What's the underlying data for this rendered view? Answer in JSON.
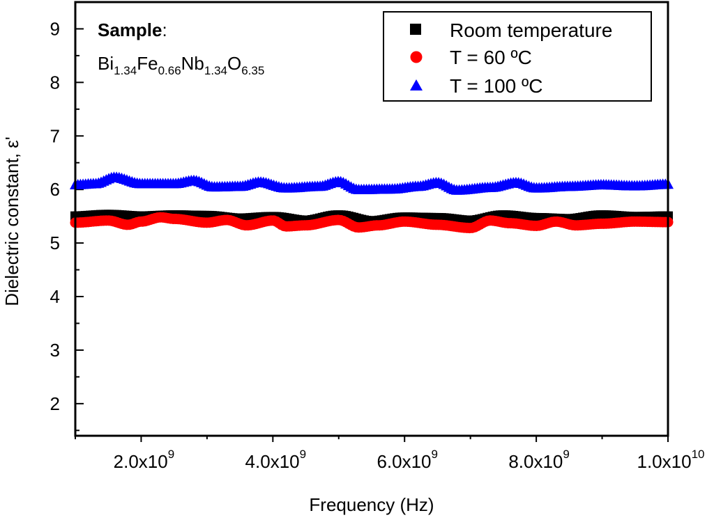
{
  "chart_data": {
    "type": "scatter",
    "xlabel": "Frequency (Hz)",
    "ylabel": "Dielectric constant, ε'",
    "xlim": [
      1000000000,
      10000000000
    ],
    "ylim": [
      1.4,
      9.5
    ],
    "x_ticks": [
      {
        "value": 2000000000,
        "mantissa": "2.0x10",
        "exp": "9"
      },
      {
        "value": 4000000000,
        "mantissa": "4.0x10",
        "exp": "9"
      },
      {
        "value": 6000000000,
        "mantissa": "6.0x10",
        "exp": "9"
      },
      {
        "value": 8000000000,
        "mantissa": "8.0x10",
        "exp": "9"
      },
      {
        "value": 10000000000,
        "mantissa": "1.0x10",
        "exp": "10"
      }
    ],
    "y_ticks": [
      {
        "value": 2,
        "label": "2"
      },
      {
        "value": 3,
        "label": "3"
      },
      {
        "value": 4,
        "label": "4"
      },
      {
        "value": 5,
        "label": "5"
      },
      {
        "value": 6,
        "label": "6"
      },
      {
        "value": 7,
        "label": "7"
      },
      {
        "value": 8,
        "label": "8"
      },
      {
        "value": 9,
        "label": "9"
      }
    ],
    "legend_position": "top-right",
    "annotation": {
      "label_bold": "Sample",
      "label_colon": ":",
      "formula": [
        {
          "base": "Bi",
          "sub": "1.34"
        },
        {
          "base": "Fe",
          "sub": "0.66"
        },
        {
          "base": "Nb",
          "sub": "1.34"
        },
        {
          "base": "O",
          "sub": "6.35"
        }
      ]
    },
    "series": [
      {
        "name": "Room temperature",
        "marker": "square",
        "color": "#000000",
        "x_ghz": [
          1.0,
          1.5,
          2.0,
          2.5,
          3.0,
          3.5,
          4.0,
          4.5,
          5.0,
          5.5,
          6.0,
          6.5,
          7.0,
          7.5,
          8.0,
          8.5,
          9.0,
          9.5,
          10.0
        ],
        "values": [
          5.5,
          5.53,
          5.5,
          5.52,
          5.51,
          5.46,
          5.49,
          5.42,
          5.52,
          5.41,
          5.48,
          5.47,
          5.42,
          5.52,
          5.47,
          5.45,
          5.52,
          5.49,
          5.5
        ]
      },
      {
        "name": "T = 60 ºC",
        "marker": "circle",
        "color": "#ff0000",
        "x_ghz": [
          1.0,
          1.5,
          1.8,
          2.0,
          2.3,
          2.5,
          3.0,
          3.3,
          3.6,
          4.0,
          4.2,
          4.5,
          5.0,
          5.3,
          5.6,
          6.0,
          6.5,
          7.0,
          7.3,
          7.6,
          8.0,
          8.3,
          8.6,
          9.0,
          9.5,
          10.0
        ],
        "values": [
          5.38,
          5.42,
          5.34,
          5.4,
          5.48,
          5.45,
          5.38,
          5.43,
          5.33,
          5.42,
          5.31,
          5.33,
          5.43,
          5.29,
          5.33,
          5.4,
          5.34,
          5.28,
          5.42,
          5.37,
          5.32,
          5.4,
          5.33,
          5.36,
          5.4,
          5.39
        ]
      },
      {
        "name": "T = 100 ºC",
        "marker": "triangle",
        "color": "#0000ff",
        "x_ghz": [
          1.0,
          1.3,
          1.6,
          2.0,
          2.5,
          2.8,
          3.1,
          3.5,
          3.8,
          4.2,
          4.7,
          5.0,
          5.3,
          5.8,
          6.2,
          6.5,
          6.8,
          7.3,
          7.7,
          8.0,
          8.5,
          9.0,
          9.5,
          10.0
        ],
        "values": [
          6.08,
          6.1,
          6.22,
          6.1,
          6.1,
          6.16,
          6.04,
          6.05,
          6.13,
          6.02,
          6.05,
          6.14,
          5.99,
          6.0,
          6.05,
          6.12,
          5.98,
          6.03,
          6.12,
          6.02,
          6.05,
          6.08,
          6.06,
          6.09
        ]
      }
    ]
  }
}
